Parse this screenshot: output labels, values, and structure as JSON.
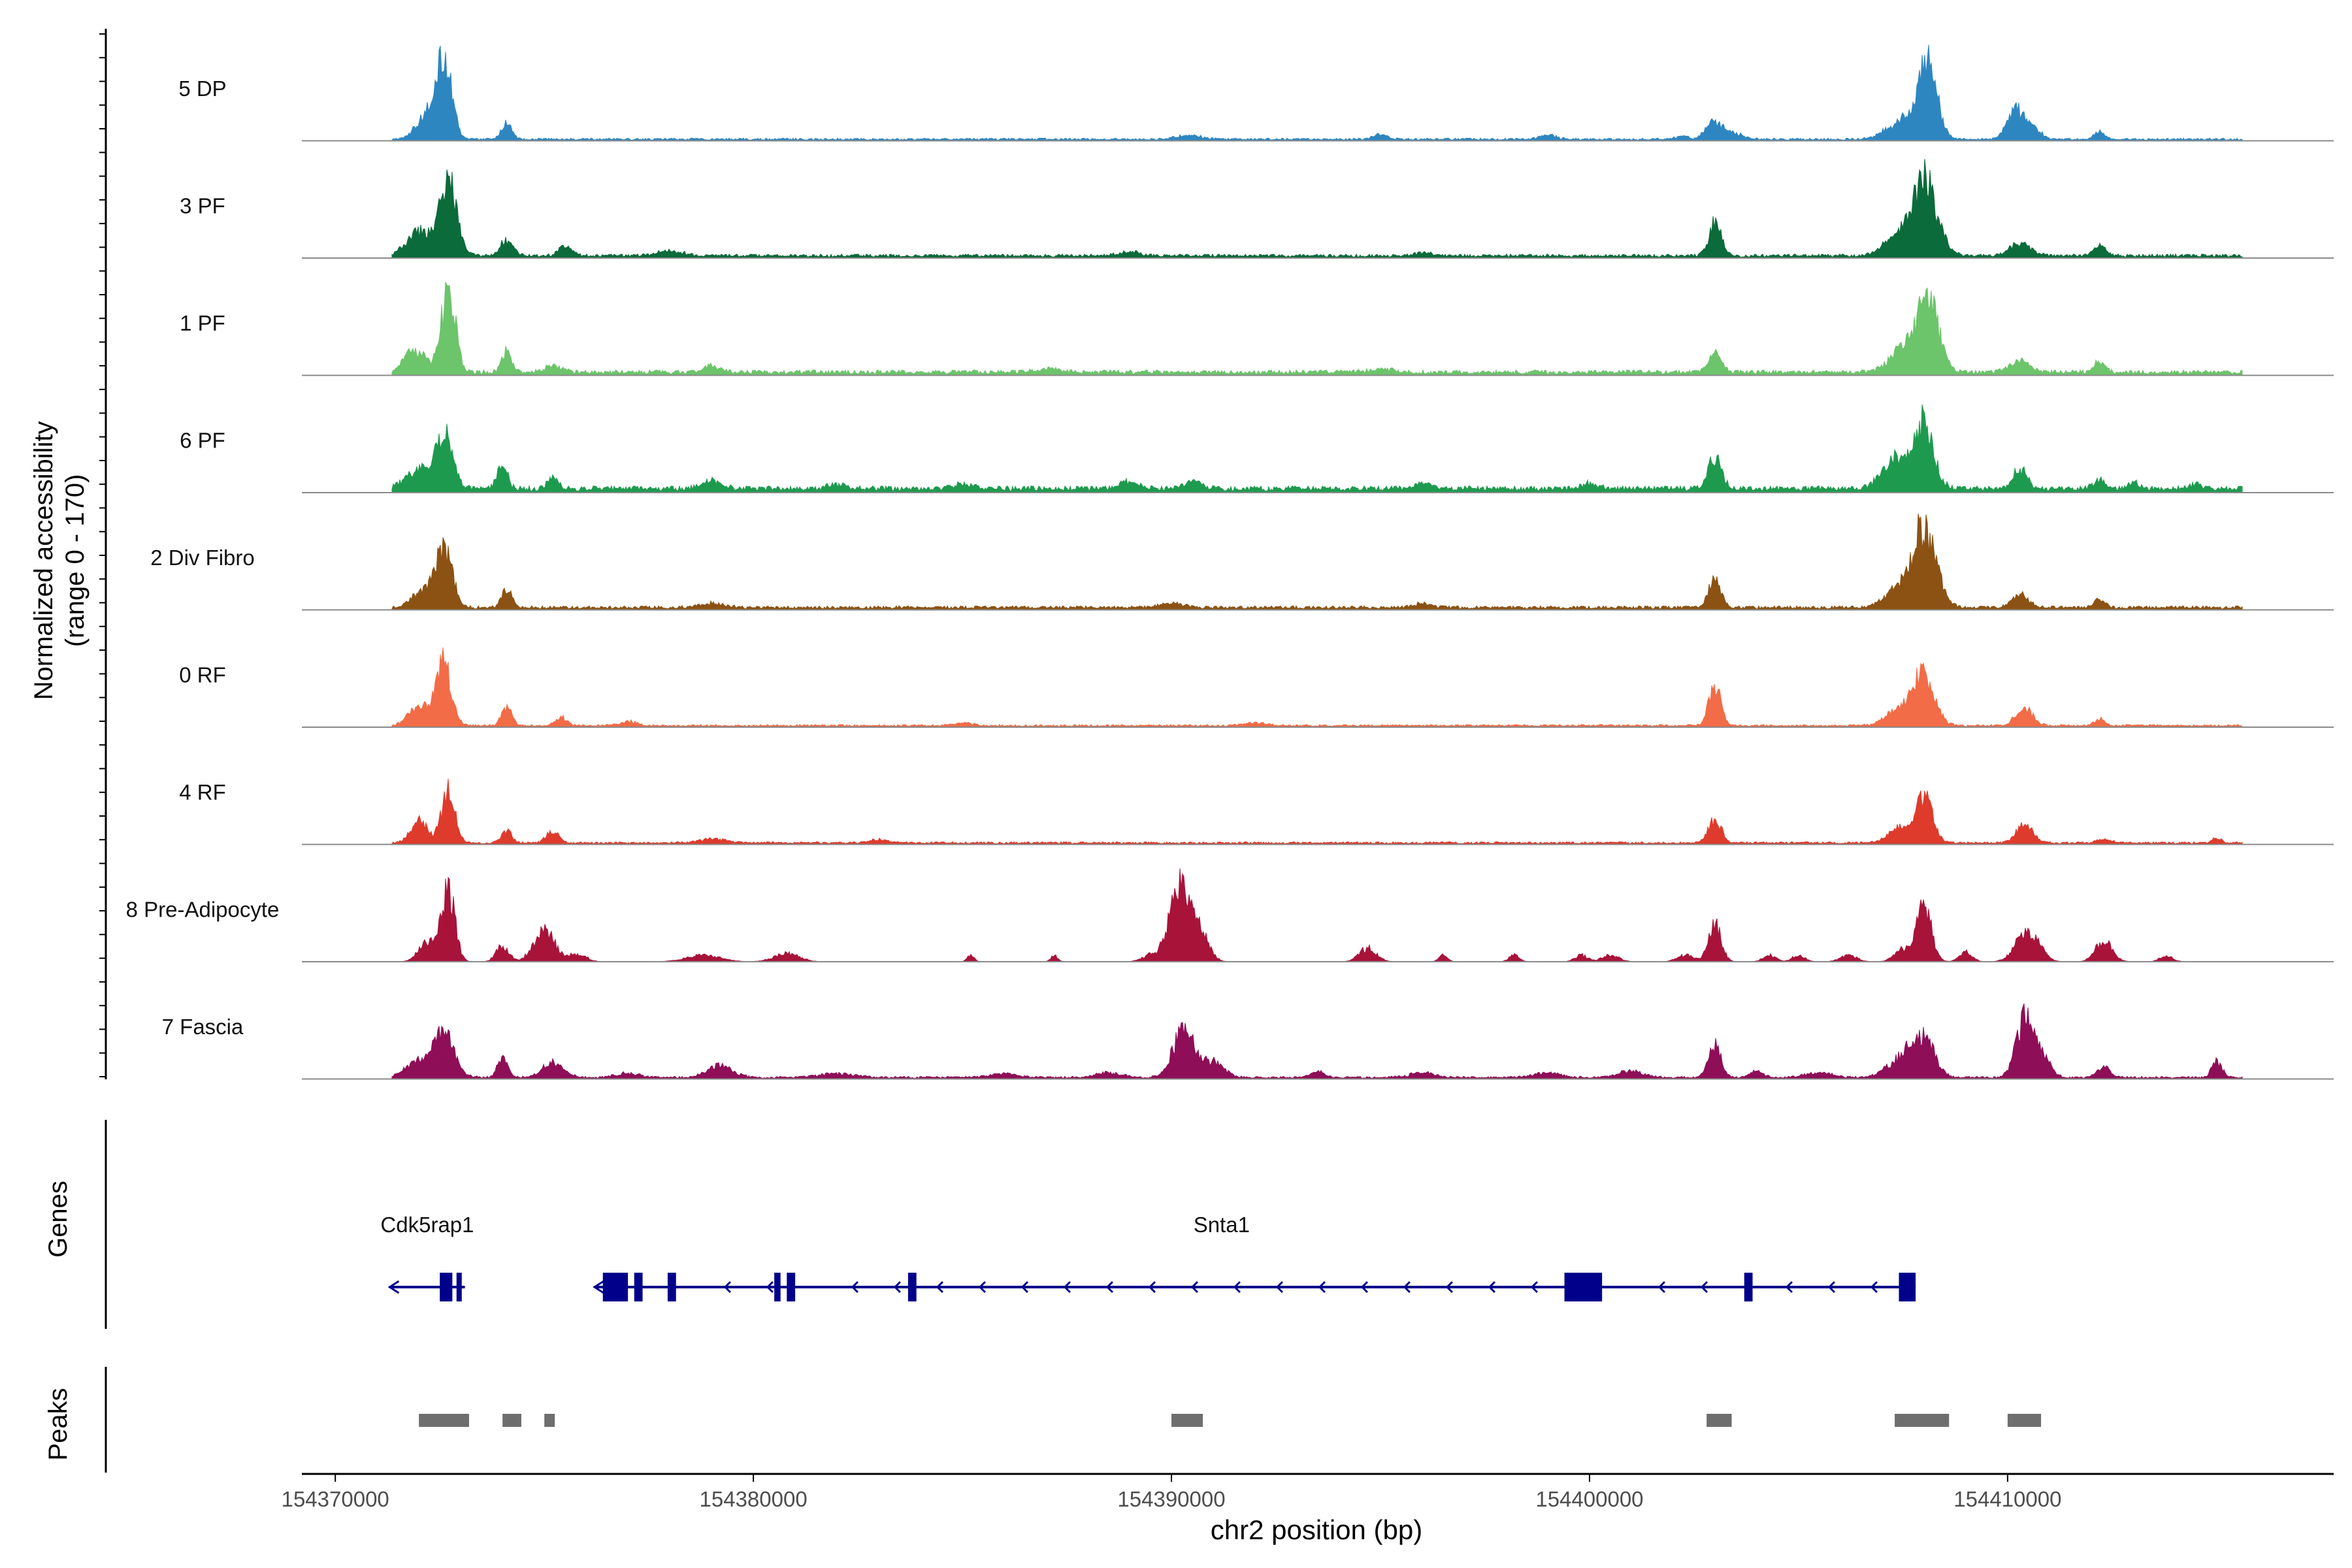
{
  "chart_data": {
    "type": "area",
    "title": "",
    "region": "chr2:154369200-154417800",
    "xlim": [
      154369200,
      154417800
    ],
    "xlabel": "chr2 position (bp)",
    "xticks": [
      154370000,
      154380000,
      154390000,
      154400000,
      154410000
    ],
    "ylabel": "Normalized accessibility",
    "ylabel_range": "(range 0 - 170)",
    "ylim": [
      0,
      170
    ],
    "tracks": [
      {
        "name": "5 DP",
        "color": "#2E86C1",
        "baseline": 0.02,
        "peaks": [
          [
            154372600,
            1.0,
            180
          ],
          [
            154372200,
            0.28,
            260
          ],
          [
            154374100,
            0.2,
            120
          ],
          [
            154390400,
            0.05,
            300
          ],
          [
            154395000,
            0.06,
            150
          ],
          [
            154399000,
            0.05,
            200
          ],
          [
            154402200,
            0.04,
            150
          ],
          [
            154403000,
            0.22,
            200
          ],
          [
            154403500,
            0.06,
            200
          ],
          [
            154407500,
            0.25,
            350
          ],
          [
            154408100,
            0.9,
            220
          ],
          [
            154410200,
            0.35,
            200
          ],
          [
            154410600,
            0.12,
            200
          ],
          [
            154412200,
            0.1,
            120
          ]
        ]
      },
      {
        "name": "3 PF",
        "color": "#0B6B3A",
        "baseline": 0.03,
        "peaks": [
          [
            154372700,
            0.95,
            200
          ],
          [
            154372000,
            0.3,
            300
          ],
          [
            154374100,
            0.2,
            150
          ],
          [
            154375500,
            0.12,
            150
          ],
          [
            154378000,
            0.06,
            300
          ],
          [
            154389000,
            0.05,
            250
          ],
          [
            154396000,
            0.04,
            200
          ],
          [
            154403000,
            0.4,
            150
          ],
          [
            154408000,
            0.95,
            300
          ],
          [
            154407300,
            0.2,
            300
          ],
          [
            154410300,
            0.15,
            250
          ],
          [
            154412200,
            0.12,
            150
          ]
        ]
      },
      {
        "name": "1 PF",
        "color": "#6CC46B",
        "baseline": 0.04,
        "peaks": [
          [
            154372700,
            1.0,
            170
          ],
          [
            154371900,
            0.28,
            250
          ],
          [
            154374100,
            0.25,
            120
          ],
          [
            154375200,
            0.08,
            200
          ],
          [
            154379000,
            0.08,
            200
          ],
          [
            154387000,
            0.04,
            300
          ],
          [
            154395000,
            0.04,
            300
          ],
          [
            154403000,
            0.25,
            150
          ],
          [
            154408100,
            0.92,
            250
          ],
          [
            154407500,
            0.3,
            300
          ],
          [
            154410300,
            0.12,
            250
          ],
          [
            154412200,
            0.15,
            120
          ]
        ]
      },
      {
        "name": "6 PF",
        "color": "#1E9A4E",
        "baseline": 0.05,
        "peaks": [
          [
            154372600,
            0.65,
            200
          ],
          [
            154372000,
            0.25,
            300
          ],
          [
            154374000,
            0.32,
            120
          ],
          [
            154375200,
            0.14,
            120
          ],
          [
            154379000,
            0.1,
            250
          ],
          [
            154382000,
            0.06,
            200
          ],
          [
            154385000,
            0.06,
            250
          ],
          [
            154389000,
            0.08,
            250
          ],
          [
            154390500,
            0.1,
            200
          ],
          [
            154396000,
            0.06,
            200
          ],
          [
            154400000,
            0.06,
            200
          ],
          [
            154403000,
            0.42,
            150
          ],
          [
            154408000,
            0.82,
            230
          ],
          [
            154407300,
            0.35,
            300
          ],
          [
            154410300,
            0.25,
            150
          ],
          [
            154412200,
            0.1,
            150
          ],
          [
            154413000,
            0.08,
            120
          ],
          [
            154414500,
            0.06,
            150
          ]
        ]
      },
      {
        "name": "2 Div Fibro",
        "color": "#8B5213",
        "baseline": 0.03,
        "peaks": [
          [
            154372600,
            0.7,
            200
          ],
          [
            154372100,
            0.2,
            250
          ],
          [
            154374100,
            0.22,
            120
          ],
          [
            154379000,
            0.05,
            300
          ],
          [
            154390000,
            0.06,
            250
          ],
          [
            154396000,
            0.05,
            200
          ],
          [
            154403000,
            0.37,
            140
          ],
          [
            154408000,
            1.0,
            280
          ],
          [
            154407300,
            0.2,
            300
          ],
          [
            154410300,
            0.16,
            200
          ],
          [
            154412200,
            0.1,
            120
          ]
        ]
      },
      {
        "name": "0 RF",
        "color": "#F26C47",
        "baseline": 0.02,
        "peaks": [
          [
            154372600,
            0.78,
            180
          ],
          [
            154372000,
            0.25,
            250
          ],
          [
            154374100,
            0.22,
            120
          ],
          [
            154375400,
            0.1,
            150
          ],
          [
            154377000,
            0.05,
            200
          ],
          [
            154385000,
            0.03,
            250
          ],
          [
            154392000,
            0.03,
            250
          ],
          [
            154403000,
            0.52,
            140
          ],
          [
            154408000,
            0.64,
            250
          ],
          [
            154407400,
            0.2,
            300
          ],
          [
            154410400,
            0.22,
            200
          ],
          [
            154412200,
            0.08,
            120
          ]
        ]
      },
      {
        "name": "4 RF",
        "color": "#DE3B2C",
        "baseline": 0.02,
        "peaks": [
          [
            154372700,
            0.65,
            160
          ],
          [
            154372000,
            0.28,
            200
          ],
          [
            154374100,
            0.15,
            120
          ],
          [
            154375200,
            0.14,
            150
          ],
          [
            154379000,
            0.05,
            300
          ],
          [
            154383000,
            0.04,
            200
          ],
          [
            154403000,
            0.3,
            150
          ],
          [
            154408000,
            0.55,
            200
          ],
          [
            154407400,
            0.18,
            250
          ],
          [
            154410400,
            0.22,
            200
          ],
          [
            154412300,
            0.05,
            150
          ],
          [
            154415000,
            0.06,
            100
          ]
        ]
      },
      {
        "name": "8 Pre-Adipocyte",
        "color": "#A8133A",
        "baseline": 0.0,
        "peaks": [
          [
            154372700,
            0.88,
            160
          ],
          [
            154372200,
            0.25,
            200
          ],
          [
            154374000,
            0.2,
            150
          ],
          [
            154375000,
            0.4,
            250
          ],
          [
            154375800,
            0.1,
            200
          ],
          [
            154378800,
            0.08,
            400
          ],
          [
            154380800,
            0.1,
            300
          ],
          [
            154385200,
            0.08,
            80
          ],
          [
            154387200,
            0.08,
            80
          ],
          [
            154389500,
            0.08,
            200
          ],
          [
            154390200,
            0.9,
            250
          ],
          [
            154390700,
            0.35,
            200
          ],
          [
            154394700,
            0.17,
            200
          ],
          [
            154396500,
            0.08,
            100
          ],
          [
            154398200,
            0.08,
            120
          ],
          [
            154399800,
            0.08,
            150
          ],
          [
            154400500,
            0.08,
            200
          ],
          [
            154402300,
            0.08,
            200
          ],
          [
            154403000,
            0.45,
            150
          ],
          [
            154404300,
            0.08,
            150
          ],
          [
            154405000,
            0.08,
            150
          ],
          [
            154406200,
            0.08,
            200
          ],
          [
            154407500,
            0.15,
            200
          ],
          [
            154408000,
            0.65,
            180
          ],
          [
            154409000,
            0.12,
            150
          ],
          [
            154410400,
            0.3,
            250
          ],
          [
            154410700,
            0.15,
            200
          ],
          [
            154412300,
            0.25,
            200
          ],
          [
            154413800,
            0.08,
            150
          ]
        ]
      },
      {
        "name": "7 Fascia",
        "color": "#8E0E57",
        "baseline": 0.02,
        "peaks": [
          [
            154372600,
            0.52,
            250
          ],
          [
            154372000,
            0.2,
            300
          ],
          [
            154374000,
            0.25,
            120
          ],
          [
            154375200,
            0.18,
            250
          ],
          [
            154377000,
            0.06,
            250
          ],
          [
            154379200,
            0.15,
            300
          ],
          [
            154382000,
            0.05,
            400
          ],
          [
            154386000,
            0.05,
            300
          ],
          [
            154388500,
            0.06,
            300
          ],
          [
            154390300,
            0.6,
            250
          ],
          [
            154391000,
            0.2,
            250
          ],
          [
            154393500,
            0.08,
            150
          ],
          [
            154396000,
            0.06,
            300
          ],
          [
            154399000,
            0.06,
            300
          ],
          [
            154401000,
            0.08,
            300
          ],
          [
            154403000,
            0.38,
            150
          ],
          [
            154404000,
            0.08,
            150
          ],
          [
            154405500,
            0.06,
            300
          ],
          [
            154407500,
            0.25,
            350
          ],
          [
            154408000,
            0.45,
            250
          ],
          [
            154410400,
            0.7,
            200
          ],
          [
            154410800,
            0.3,
            200
          ],
          [
            154412300,
            0.15,
            150
          ],
          [
            154415000,
            0.2,
            120
          ]
        ]
      }
    ],
    "genes": [
      {
        "name": "Cdk5rap1",
        "label_pos": 154372200,
        "strand": "-",
        "start": 154371300,
        "end": 154373100,
        "exons": [
          [
            154372500,
            154372800
          ],
          [
            154372900,
            154373000
          ]
        ]
      },
      {
        "name": "Snta1",
        "label_pos": 154391200,
        "strand": "-",
        "start": 154376200,
        "end": 154407800,
        "exons": [
          [
            154376400,
            154377000
          ],
          [
            154377150,
            154377350
          ],
          [
            154377950,
            154378150
          ],
          [
            154380500,
            154380650
          ],
          [
            154380800,
            154381000
          ],
          [
            154383700,
            154383900
          ],
          [
            154399400,
            154400300
          ],
          [
            154403700,
            154403900
          ],
          [
            154407400,
            154407800
          ]
        ]
      }
    ],
    "peaks_track": [
      [
        154372000,
        154373200
      ],
      [
        154374000,
        154374450
      ],
      [
        154375000,
        154375250
      ],
      [
        154390000,
        154390750
      ],
      [
        154402800,
        154403400
      ],
      [
        154407300,
        154408600
      ],
      [
        154410000,
        154410800
      ]
    ],
    "panel_labels": {
      "genes": "Genes",
      "peaks": "Peaks"
    },
    "gene_color": "#00008B",
    "peak_color": "#6E6E6E"
  }
}
